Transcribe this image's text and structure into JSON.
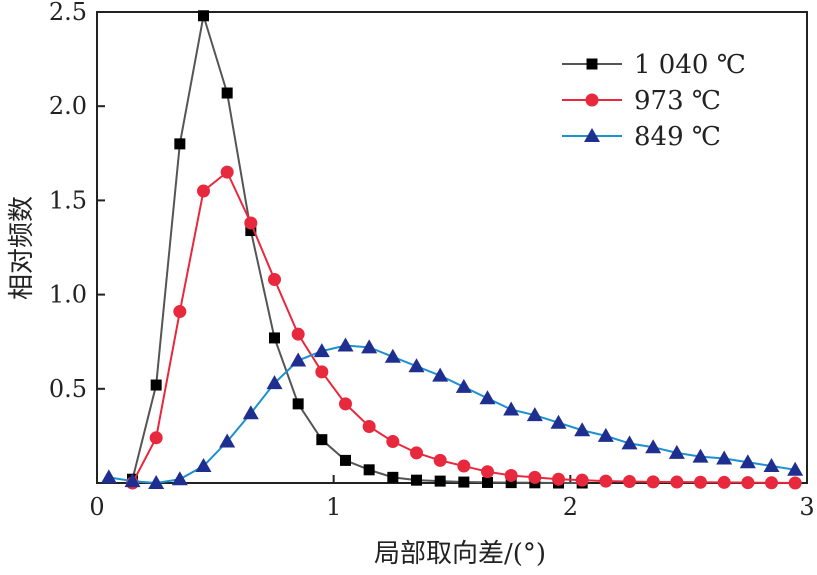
{
  "chart_data": {
    "type": "line",
    "title": "",
    "xlabel": "局部取向差/(°)",
    "ylabel": "相对频数",
    "xlim": [
      0,
      3
    ],
    "ylim": [
      0,
      2.5
    ],
    "xticks": [
      "0",
      "1",
      "2",
      "3"
    ],
    "xtick_values": [
      0,
      1,
      2,
      3
    ],
    "yticks": [
      "0.5",
      "1.0",
      "1.5",
      "2.0",
      "2.5"
    ],
    "ytick_values": [
      0.5,
      1.0,
      1.5,
      2.0,
      2.5
    ],
    "grid": false,
    "legend_position": "top-right",
    "series": [
      {
        "name": "1 040 ℃",
        "color": "#555555",
        "marker": "square",
        "marker_color": "#000000",
        "x": [
          0.15,
          0.25,
          0.35,
          0.45,
          0.55,
          0.65,
          0.75,
          0.85,
          0.95,
          1.05,
          1.15,
          1.25,
          1.35,
          1.45,
          1.55,
          1.65,
          1.75,
          1.85,
          1.95,
          2.05
        ],
        "y": [
          0.02,
          0.52,
          1.8,
          2.48,
          2.07,
          1.34,
          0.77,
          0.42,
          0.23,
          0.12,
          0.07,
          0.03,
          0.015,
          0.01,
          0.005,
          0.003,
          0.002,
          0.001,
          0.0,
          0.0
        ]
      },
      {
        "name": "973 ℃",
        "color": "#e8283c",
        "marker": "circle",
        "marker_color": "#e8283c",
        "x": [
          0.15,
          0.25,
          0.35,
          0.45,
          0.55,
          0.65,
          0.75,
          0.85,
          0.95,
          1.05,
          1.15,
          1.25,
          1.35,
          1.45,
          1.55,
          1.65,
          1.75,
          1.85,
          1.95,
          2.05,
          2.15,
          2.25,
          2.35,
          2.45,
          2.55,
          2.65,
          2.75,
          2.85,
          2.95
        ],
        "y": [
          0.0,
          0.24,
          0.91,
          1.55,
          1.65,
          1.38,
          1.08,
          0.79,
          0.59,
          0.42,
          0.3,
          0.22,
          0.16,
          0.12,
          0.09,
          0.06,
          0.04,
          0.03,
          0.02,
          0.015,
          0.01,
          0.008,
          0.006,
          0.005,
          0.004,
          0.003,
          0.002,
          0.001,
          0.0
        ]
      },
      {
        "name": "849 ℃",
        "color": "#1e90d0",
        "marker": "triangle",
        "marker_color": "#1f2f8f",
        "x": [
          0.05,
          0.15,
          0.25,
          0.35,
          0.45,
          0.55,
          0.65,
          0.75,
          0.85,
          0.95,
          1.05,
          1.15,
          1.25,
          1.35,
          1.45,
          1.55,
          1.65,
          1.75,
          1.85,
          1.95,
          2.05,
          2.15,
          2.25,
          2.35,
          2.45,
          2.55,
          2.65,
          2.75,
          2.85,
          2.95
        ],
        "y": [
          0.03,
          0.01,
          0.0,
          0.02,
          0.09,
          0.22,
          0.37,
          0.53,
          0.65,
          0.7,
          0.73,
          0.72,
          0.67,
          0.62,
          0.57,
          0.51,
          0.45,
          0.39,
          0.36,
          0.32,
          0.28,
          0.25,
          0.21,
          0.19,
          0.16,
          0.14,
          0.13,
          0.11,
          0.09,
          0.07
        ]
      }
    ]
  }
}
